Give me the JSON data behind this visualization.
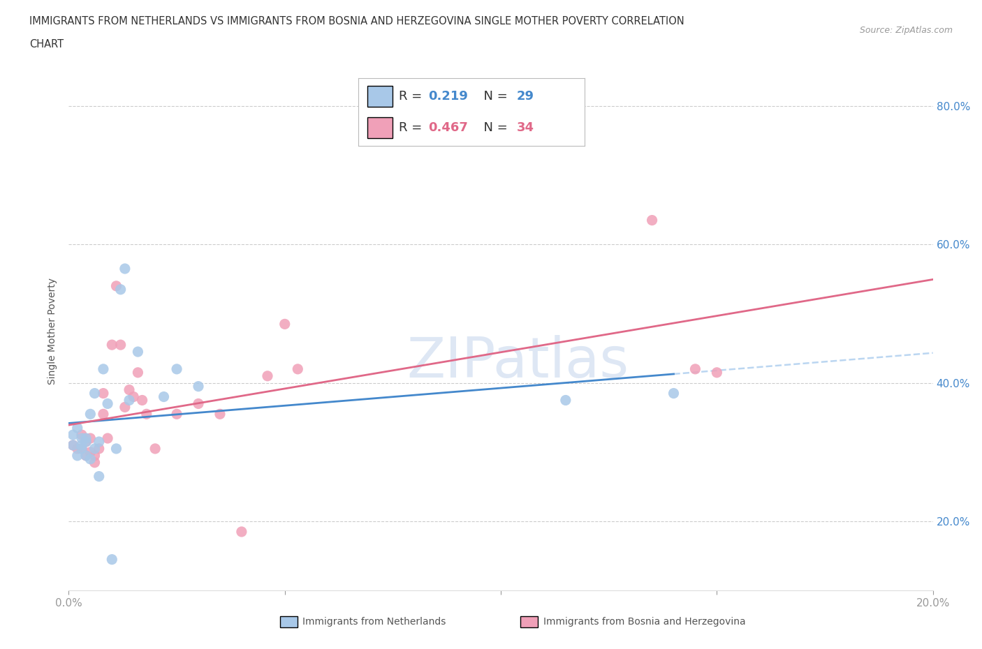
{
  "title_line1": "IMMIGRANTS FROM NETHERLANDS VS IMMIGRANTS FROM BOSNIA AND HERZEGOVINA SINGLE MOTHER POVERTY CORRELATION",
  "title_line2": "CHART",
  "source": "Source: ZipAtlas.com",
  "ylabel": "Single Mother Poverty",
  "legend_label1": "Immigrants from Netherlands",
  "legend_label2": "Immigrants from Bosnia and Herzegovina",
  "R1": 0.219,
  "N1": 29,
  "R2": 0.467,
  "N2": 34,
  "color1": "#a8c8e8",
  "color2": "#f0a0b8",
  "line_color1": "#4488cc",
  "line_color2": "#e06888",
  "trendline_dash_color": "#aaccee",
  "xlim": [
    0.0,
    0.2
  ],
  "ylim": [
    0.1,
    0.85
  ],
  "scatter1_x": [
    0.001,
    0.001,
    0.002,
    0.002,
    0.003,
    0.003,
    0.003,
    0.004,
    0.004,
    0.004,
    0.005,
    0.005,
    0.006,
    0.006,
    0.007,
    0.007,
    0.008,
    0.009,
    0.01,
    0.011,
    0.012,
    0.013,
    0.014,
    0.016,
    0.022,
    0.025,
    0.03,
    0.115,
    0.14
  ],
  "scatter1_y": [
    0.325,
    0.31,
    0.335,
    0.295,
    0.32,
    0.305,
    0.31,
    0.32,
    0.295,
    0.315,
    0.355,
    0.29,
    0.385,
    0.305,
    0.315,
    0.265,
    0.42,
    0.37,
    0.145,
    0.305,
    0.535,
    0.565,
    0.375,
    0.445,
    0.38,
    0.42,
    0.395,
    0.375,
    0.385
  ],
  "scatter2_x": [
    0.001,
    0.002,
    0.003,
    0.003,
    0.004,
    0.004,
    0.005,
    0.005,
    0.006,
    0.006,
    0.007,
    0.008,
    0.008,
    0.009,
    0.01,
    0.011,
    0.012,
    0.013,
    0.014,
    0.015,
    0.016,
    0.017,
    0.018,
    0.02,
    0.025,
    0.03,
    0.035,
    0.04,
    0.046,
    0.05,
    0.053,
    0.135,
    0.145,
    0.15
  ],
  "scatter2_y": [
    0.31,
    0.305,
    0.325,
    0.305,
    0.295,
    0.315,
    0.32,
    0.3,
    0.295,
    0.285,
    0.305,
    0.355,
    0.385,
    0.32,
    0.455,
    0.54,
    0.455,
    0.365,
    0.39,
    0.38,
    0.415,
    0.375,
    0.355,
    0.305,
    0.355,
    0.37,
    0.355,
    0.185,
    0.41,
    0.485,
    0.42,
    0.635,
    0.42,
    0.415
  ],
  "watermark": "ZIPatlas",
  "watermark_color": "#c8d8ee"
}
